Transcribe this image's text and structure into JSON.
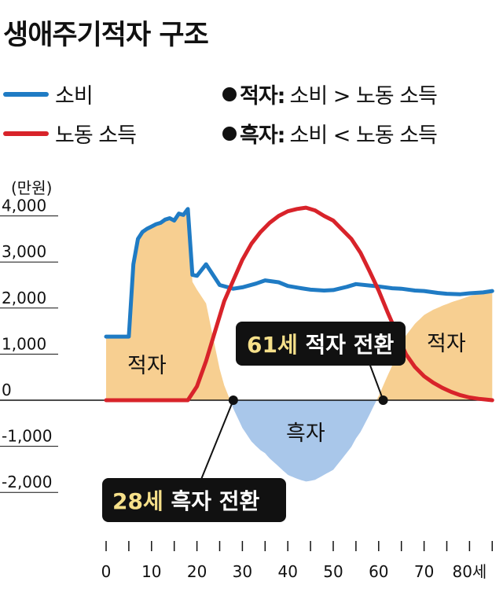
{
  "title": "생애주기적자 구조",
  "legend": {
    "consumption": "소비",
    "labor_income": "노동 소득",
    "deficit_term": "적자:",
    "deficit_desc": "소비 > 노동 소득",
    "surplus_term": "흑자:",
    "surplus_desc": "소비 < 노동 소득"
  },
  "colors": {
    "consumption": "#1f7bc4",
    "labor_income": "#d8232a",
    "deficit_fill": "#f7cf91",
    "surplus_fill": "#a9c7ea",
    "callout_bg": "#111111",
    "callout_highlight": "#f6e08a"
  },
  "annotations": {
    "deficit_young": "적자",
    "surplus": "흑자",
    "deficit_old": "적자",
    "turn_61_age": "61세",
    "turn_61_text": " 적자 전환",
    "turn_28_age": "28세",
    "turn_28_text": " 흑자 전환"
  },
  "chart_data": {
    "type": "line",
    "ylabel": "(만원)",
    "xlabel": "",
    "ylim": [
      -2000,
      4000
    ],
    "xlim": [
      0,
      85
    ],
    "y_ticks": [
      4000,
      3000,
      2000,
      1000,
      0,
      -1000,
      -2000
    ],
    "y_tick_labels": [
      "4,000",
      "3,000",
      "2,000",
      "1,000",
      "0",
      "-1,000",
      "-2,000"
    ],
    "x_ticks": [
      0,
      10,
      20,
      30,
      40,
      50,
      60,
      70,
      80
    ],
    "x_tick_labels": [
      "0",
      "10",
      "20",
      "30",
      "40",
      "50",
      "60",
      "70",
      "80세"
    ],
    "x_minor_ticks": [
      0,
      5,
      10,
      15,
      20,
      25,
      30,
      35,
      40,
      45,
      50,
      55,
      60,
      65,
      70,
      75,
      80,
      85
    ],
    "series": [
      {
        "name": "소비",
        "color": "#1f7bc4",
        "x": [
          0,
          1,
          2,
          3,
          4,
          5,
          6,
          7,
          8,
          9,
          10,
          11,
          12,
          13,
          14,
          15,
          16,
          17,
          18,
          19,
          20,
          22,
          25,
          28,
          30,
          33,
          35,
          38,
          40,
          43,
          45,
          48,
          50,
          53,
          55,
          58,
          60,
          63,
          65,
          68,
          70,
          73,
          75,
          78,
          80,
          83,
          85
        ],
        "y": [
          1380,
          1380,
          1380,
          1380,
          1380,
          1380,
          2950,
          3500,
          3650,
          3720,
          3770,
          3820,
          3850,
          3920,
          3950,
          3900,
          4050,
          4020,
          4150,
          2720,
          2700,
          2950,
          2500,
          2420,
          2450,
          2530,
          2600,
          2560,
          2480,
          2430,
          2400,
          2380,
          2390,
          2460,
          2520,
          2490,
          2470,
          2430,
          2420,
          2380,
          2370,
          2330,
          2310,
          2300,
          2320,
          2340,
          2370
        ]
      },
      {
        "name": "노동 소득",
        "color": "#d8232a",
        "x": [
          0,
          5,
          10,
          15,
          18,
          20,
          22,
          24,
          26,
          28,
          30,
          32,
          34,
          36,
          38,
          40,
          42,
          44,
          46,
          48,
          50,
          52,
          54,
          56,
          58,
          60,
          62,
          64,
          66,
          68,
          70,
          72,
          74,
          76,
          78,
          80,
          82,
          84,
          85
        ],
        "y": [
          0,
          0,
          0,
          0,
          0,
          300,
          850,
          1500,
          2150,
          2600,
          3050,
          3400,
          3650,
          3850,
          4000,
          4100,
          4150,
          4180,
          4120,
          4000,
          3900,
          3700,
          3500,
          3200,
          2800,
          2380,
          1900,
          1450,
          1000,
          720,
          520,
          380,
          270,
          180,
          110,
          60,
          30,
          10,
          0
        ]
      }
    ],
    "crossings": [
      {
        "age": 28,
        "value": 0
      },
      {
        "age": 61,
        "value": 0
      }
    ]
  }
}
